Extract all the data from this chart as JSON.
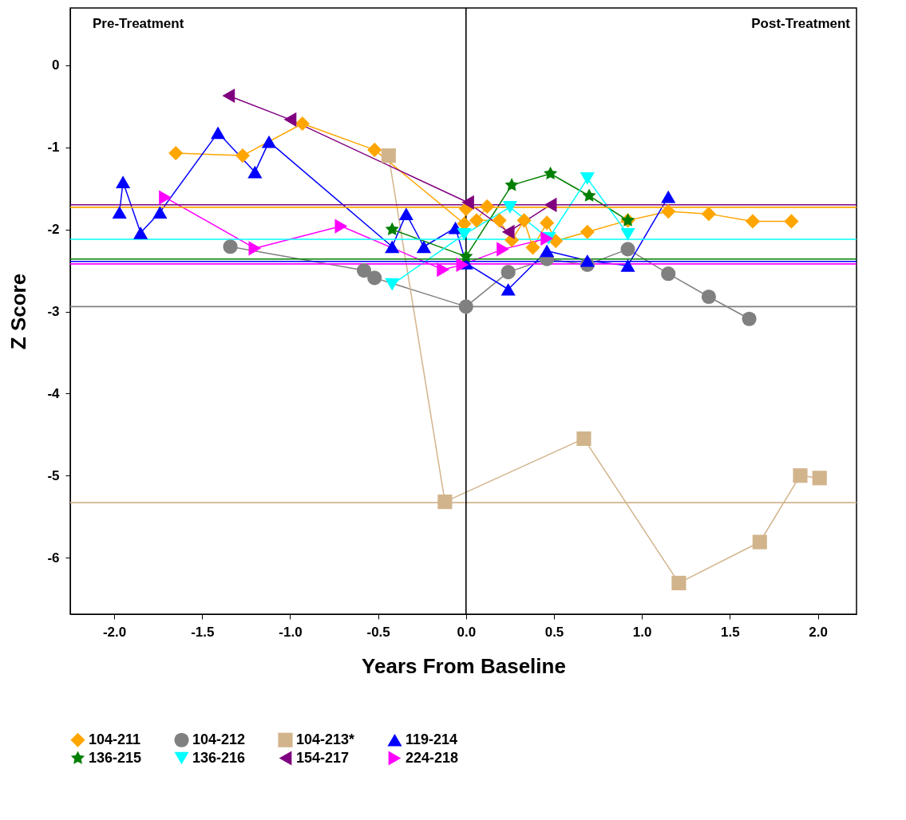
{
  "chart_data": {
    "type": "line",
    "xlabel": "Years From Baseline",
    "ylabel": "Z Score",
    "annotations": [
      "Pre-Treatment",
      "Post-Treatment"
    ],
    "xlim": [
      -2.25,
      2.22
    ],
    "ylim": [
      -6.69,
      0.7
    ],
    "xticks": [
      {
        "value": -2,
        "label": "-2.0"
      },
      {
        "value": -1.5,
        "label": "-1.5"
      },
      {
        "value": -1,
        "label": "-1.0"
      },
      {
        "value": -0.5,
        "label": "-0.5"
      },
      {
        "value": 0,
        "label": "0.0"
      },
      {
        "value": 0.5,
        "label": "0.5"
      },
      {
        "value": 1,
        "label": "1.0"
      },
      {
        "value": 1.5,
        "label": "1.5"
      },
      {
        "value": 2,
        "label": "2.0"
      }
    ],
    "yticks": [
      0,
      -1,
      -2,
      -3,
      -4,
      -5,
      -6
    ],
    "grid": false,
    "legend": "bottom",
    "line_style": "solid",
    "series": [
      {
        "name": "104-211",
        "color": "#ffa500",
        "marker": "diamond",
        "x": [
          -1.65,
          -1.27,
          -0.93,
          -0.52,
          -0.01,
          0.0,
          0.12,
          0.06,
          0.19,
          0.26,
          0.33,
          0.38,
          0.46,
          0.51,
          0.69,
          0.92,
          1.15,
          1.38,
          1.63,
          1.85
        ],
        "values": [
          -1.07,
          -1.1,
          -0.71,
          -1.03,
          -1.93,
          -1.75,
          -1.72,
          -1.89,
          -1.89,
          -2.13,
          -1.89,
          -2.22,
          -1.92,
          -2.14,
          -2.03,
          -1.89,
          -1.78,
          -1.81,
          -1.9,
          -1.9
        ]
      },
      {
        "name": "104-212",
        "color": "#808080",
        "marker": "circle",
        "x": [
          -1.34,
          -0.58,
          -0.52,
          0.0,
          0.24,
          0.46,
          0.69,
          0.92,
          1.15,
          1.38,
          1.61
        ],
        "values": [
          -2.21,
          -2.5,
          -2.59,
          -2.94,
          -2.52,
          -2.36,
          -2.43,
          -2.24,
          -2.54,
          -2.82,
          -3.09
        ]
      },
      {
        "name": "104-213*",
        "color": "#d2b48c",
        "marker": "square",
        "x": [
          -0.44,
          -0.12,
          0.67,
          1.21,
          1.67,
          1.9,
          2.01
        ],
        "values": [
          -1.1,
          -5.32,
          -4.55,
          -6.31,
          -5.81,
          -5.0,
          -5.03
        ]
      },
      {
        "name": "119-214",
        "color": "#0000ff",
        "marker": "triangle",
        "x": [
          -1.97,
          -1.95,
          -1.85,
          -1.74,
          -1.41,
          -1.2,
          -1.12,
          -0.42,
          -0.34,
          -0.24,
          -0.06,
          0.0,
          0.24,
          0.46,
          0.69,
          0.92,
          1.15
        ],
        "values": [
          -1.79,
          -1.42,
          -2.04,
          -1.79,
          -0.82,
          -1.3,
          -0.93,
          -2.21,
          -1.81,
          -2.21,
          -1.98,
          -2.41,
          -2.73,
          -2.26,
          -2.38,
          -2.44,
          -1.6
        ]
      },
      {
        "name": "136-215",
        "color": "#008000",
        "marker": "star",
        "x": [
          -0.42,
          0.0,
          0.26,
          0.48,
          0.7,
          0.92
        ],
        "values": [
          -2.0,
          -2.33,
          -1.46,
          -1.32,
          -1.59,
          -1.89
        ]
      },
      {
        "name": "136-216",
        "color": "#00ffff",
        "marker": "triangle-down",
        "x": [
          -0.42,
          -0.01,
          0.25,
          0.47,
          0.69,
          0.92
        ],
        "values": [
          -2.67,
          -2.06,
          -1.73,
          -2.11,
          -1.38,
          -2.06
        ]
      },
      {
        "name": "154-217",
        "color": "#800080",
        "marker": "triangle-left",
        "x": [
          -1.35,
          -1.0,
          0.01,
          0.24,
          0.48
        ],
        "values": [
          -0.37,
          -0.66,
          -1.67,
          -2.03,
          -1.7
        ]
      },
      {
        "name": "224-218",
        "color": "#ff00ff",
        "marker": "triangle-right",
        "x": [
          -1.71,
          -1.2,
          -0.71,
          -0.13,
          -0.02,
          0.21,
          0.46
        ],
        "values": [
          -1.61,
          -2.23,
          -1.96,
          -2.49,
          -2.43,
          -2.24,
          -2.11
        ]
      }
    ],
    "ref_lines": [
      {
        "axis": "y",
        "value": -1.73,
        "color": "#ffa500"
      },
      {
        "axis": "y",
        "value": -1.7,
        "color": "#800080"
      },
      {
        "axis": "y",
        "value": -2.12,
        "color": "#00ffff"
      },
      {
        "axis": "y",
        "value": -2.36,
        "color": "#008000"
      },
      {
        "axis": "y",
        "value": -2.39,
        "color": "#0000ff"
      },
      {
        "axis": "y",
        "value": -2.42,
        "color": "#ff00ff"
      },
      {
        "axis": "y",
        "value": -2.94,
        "color": "#808080"
      },
      {
        "axis": "y",
        "value": -5.33,
        "color": "#d2b48c"
      },
      {
        "axis": "x",
        "value": 0,
        "color": "#000000"
      }
    ]
  }
}
